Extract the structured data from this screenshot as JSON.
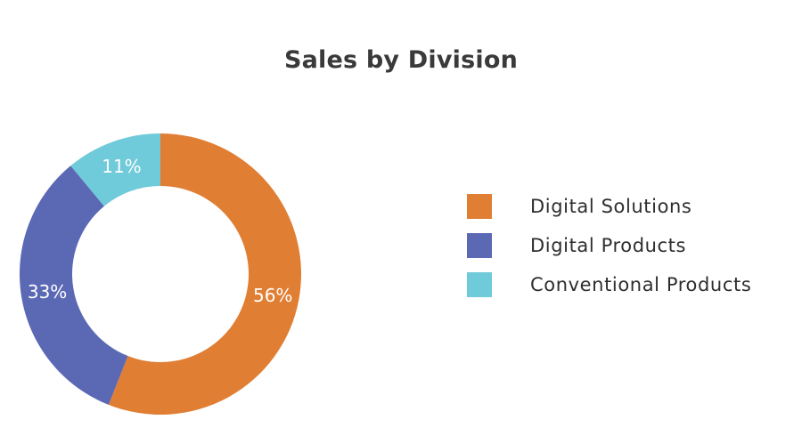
{
  "chart_data": {
    "type": "pie",
    "title": "Sales by Division",
    "donut": true,
    "legend_position": "right",
    "categories": [
      "Digital Solutions",
      "Digital Products",
      "Conventional Products"
    ],
    "values": [
      56,
      33,
      11
    ],
    "labels": [
      "56%",
      "33%",
      "11%"
    ],
    "colors": [
      "#E07E33",
      "#5B69B5",
      "#6FCAD9"
    ]
  }
}
